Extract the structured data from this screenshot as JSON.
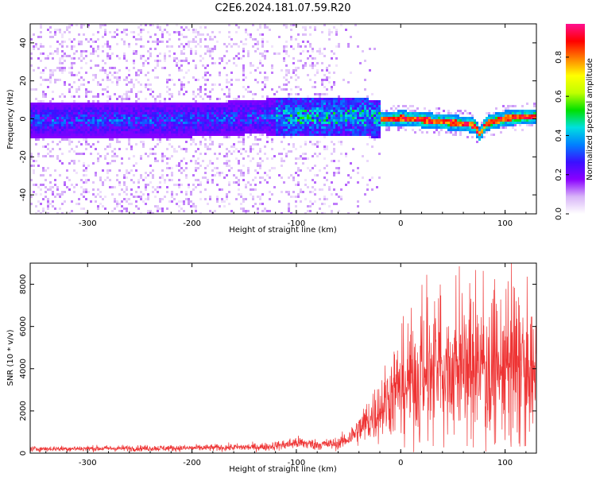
{
  "title": "C2E6.2024.181.07.59.R20",
  "chart_data": [
    {
      "type": "heatmap",
      "xlabel": "Height of straight line (km)",
      "ylabel": "Frequency (Hz)",
      "xlim": [
        -355,
        130
      ],
      "ylim": [
        -50,
        50
      ],
      "xticks": [
        -300,
        -200,
        -100,
        0,
        100
      ],
      "xtick_labels": [
        "-300",
        "-200",
        "-100",
        "0",
        "100"
      ],
      "yticks": [
        -40,
        -20,
        0,
        20,
        40
      ],
      "ytick_labels": [
        "-40",
        "-20",
        "0",
        "20",
        "40"
      ],
      "colorbar": {
        "label": "Normalized spectral amplitude",
        "range": [
          0,
          0.97
        ],
        "ticks": [
          0.0,
          0.2,
          0.4,
          0.6,
          0.8
        ],
        "tick_labels": [
          "0.0",
          "0.2",
          "0.4",
          "0.6",
          "0.8"
        ],
        "colormap": [
          "#ffffff",
          "#d8b4f8",
          "#8a00ff",
          "#3a10ff",
          "#0080ff",
          "#00e0e0",
          "#00e000",
          "#c0ff00",
          "#ffff00",
          "#ff8000",
          "#ff0000",
          "#ff1090"
        ]
      },
      "traces": [
        {
          "name": "",
          "x": [
            -355,
            -300,
            -200,
            -120,
            -60,
            -30,
            -20,
            0,
            20,
            40,
            60,
            70,
            75,
            80,
            100,
            130
          ],
          "y": [
            0,
            0,
            0,
            2,
            2,
            1,
            0,
            1,
            0,
            -1,
            -2,
            -3,
            -8,
            -2,
            1,
            2
          ]
        }
      ]
    },
    {
      "type": "line",
      "xlabel": "Height of straight line (km)",
      "ylabel": "SNR (10 * v/v)",
      "xlim": [
        -355,
        130
      ],
      "ylim": [
        0,
        9000
      ],
      "xticks": [
        -300,
        -200,
        -100,
        0,
        100
      ],
      "xtick_labels": [
        "-300",
        "-200",
        "-100",
        "0",
        "100"
      ],
      "yticks": [
        0,
        2000,
        4000,
        6000,
        8000
      ],
      "ytick_labels": [
        "0",
        "2000",
        "4000",
        "6000",
        "8000"
      ],
      "color": "#ee3333",
      "series": [
        {
          "name": "",
          "x": [
            -355,
            -300,
            -250,
            -200,
            -150,
            -130,
            -110,
            -100,
            -80,
            -60,
            -50,
            -40,
            -30,
            -20,
            -10,
            0,
            20,
            40,
            60,
            80,
            100,
            110,
            120,
            130
          ],
          "y": [
            200,
            220,
            230,
            240,
            280,
            300,
            400,
            500,
            400,
            450,
            700,
            1100,
            1600,
            2100,
            2700,
            3200,
            3700,
            4000,
            4100,
            4100,
            4000,
            4200,
            4000,
            3900
          ]
        }
      ]
    }
  ]
}
